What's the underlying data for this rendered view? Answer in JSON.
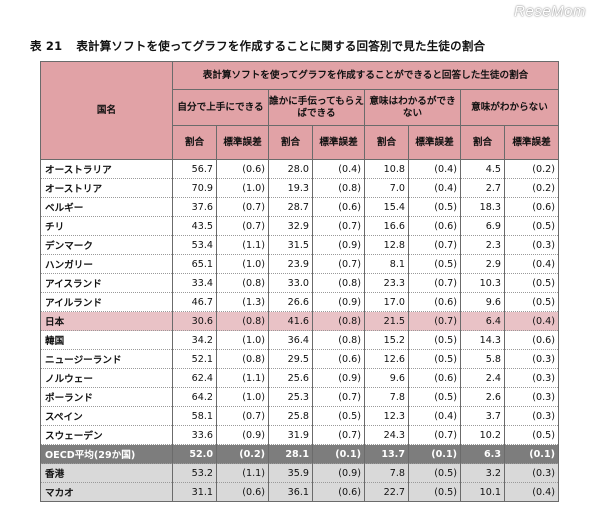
{
  "brand": {
    "logo_text": "ReseMom"
  },
  "title": {
    "number": "表 21",
    "text": "表計算ソフトを使ってグラフを作成することに関する回答別で見た生徒の割合"
  },
  "table": {
    "country_header": "国名",
    "group_header": "表計算ソフトを使ってグラフを作成することができると回答した生徒の割合",
    "categories": [
      "自分で上手にできる",
      "誰かに手伝ってもらえばできる",
      "意味はわかるができない",
      "意味がわからない"
    ],
    "sub_headers": {
      "ratio": "割合",
      "se": "標準誤差"
    },
    "rows": [
      {
        "country": "オーストラリア",
        "values": [
          "56.7",
          "(0.6)",
          "28.0",
          "(0.4)",
          "10.8",
          "(0.4)",
          "4.5",
          "(0.2)"
        ]
      },
      {
        "country": "オーストリア",
        "values": [
          "70.9",
          "(1.0)",
          "19.3",
          "(0.8)",
          "7.0",
          "(0.4)",
          "2.7",
          "(0.2)"
        ]
      },
      {
        "country": "ベルギー",
        "values": [
          "37.6",
          "(0.7)",
          "28.7",
          "(0.6)",
          "15.4",
          "(0.5)",
          "18.3",
          "(0.6)"
        ]
      },
      {
        "country": "チリ",
        "values": [
          "43.5",
          "(0.7)",
          "32.9",
          "(0.7)",
          "16.6",
          "(0.6)",
          "6.9",
          "(0.5)"
        ]
      },
      {
        "country": "デンマーク",
        "values": [
          "53.4",
          "(1.1)",
          "31.5",
          "(0.9)",
          "12.8",
          "(0.7)",
          "2.3",
          "(0.3)"
        ]
      },
      {
        "country": "ハンガリー",
        "values": [
          "65.1",
          "(1.0)",
          "23.9",
          "(0.7)",
          "8.1",
          "(0.5)",
          "2.9",
          "(0.4)"
        ]
      },
      {
        "country": "アイスランド",
        "values": [
          "33.4",
          "(0.8)",
          "33.0",
          "(0.8)",
          "23.3",
          "(0.7)",
          "10.3",
          "(0.5)"
        ]
      },
      {
        "country": "アイルランド",
        "values": [
          "46.7",
          "(1.3)",
          "26.6",
          "(0.9)",
          "17.0",
          "(0.6)",
          "9.6",
          "(0.5)"
        ]
      },
      {
        "country": "日本",
        "values": [
          "30.6",
          "(0.8)",
          "41.6",
          "(0.8)",
          "21.5",
          "(0.7)",
          "6.4",
          "(0.4)"
        ],
        "highlight": "japan"
      },
      {
        "country": "韓国",
        "values": [
          "34.2",
          "(1.0)",
          "36.4",
          "(0.8)",
          "15.2",
          "(0.5)",
          "14.3",
          "(0.6)"
        ]
      },
      {
        "country": "ニュージーランド",
        "values": [
          "52.1",
          "(0.8)",
          "29.5",
          "(0.6)",
          "12.6",
          "(0.5)",
          "5.8",
          "(0.3)"
        ]
      },
      {
        "country": "ノルウェー",
        "values": [
          "62.4",
          "(1.1)",
          "25.6",
          "(0.9)",
          "9.6",
          "(0.6)",
          "2.4",
          "(0.3)"
        ]
      },
      {
        "country": "ポーランド",
        "values": [
          "64.2",
          "(1.0)",
          "25.3",
          "(0.7)",
          "7.8",
          "(0.5)",
          "2.6",
          "(0.3)"
        ]
      },
      {
        "country": "スペイン",
        "values": [
          "58.1",
          "(0.7)",
          "25.8",
          "(0.5)",
          "12.3",
          "(0.4)",
          "3.7",
          "(0.3)"
        ]
      },
      {
        "country": "スウェーデン",
        "values": [
          "33.6",
          "(0.9)",
          "31.9",
          "(0.7)",
          "24.3",
          "(0.7)",
          "10.2",
          "(0.5)"
        ]
      },
      {
        "country": "OECD平均(29か国)",
        "values": [
          "52.0",
          "(0.2)",
          "28.1",
          "(0.1)",
          "13.7",
          "(0.1)",
          "6.3",
          "(0.1)"
        ],
        "highlight": "oecd"
      },
      {
        "country": "香港",
        "values": [
          "53.2",
          "(1.1)",
          "35.9",
          "(0.9)",
          "7.8",
          "(0.5)",
          "3.2",
          "(0.3)"
        ],
        "highlight": "hk"
      },
      {
        "country": "マカオ",
        "values": [
          "31.1",
          "(0.6)",
          "36.1",
          "(0.6)",
          "22.7",
          "(0.5)",
          "10.1",
          "(0.4)"
        ],
        "highlight": "macao"
      }
    ]
  }
}
